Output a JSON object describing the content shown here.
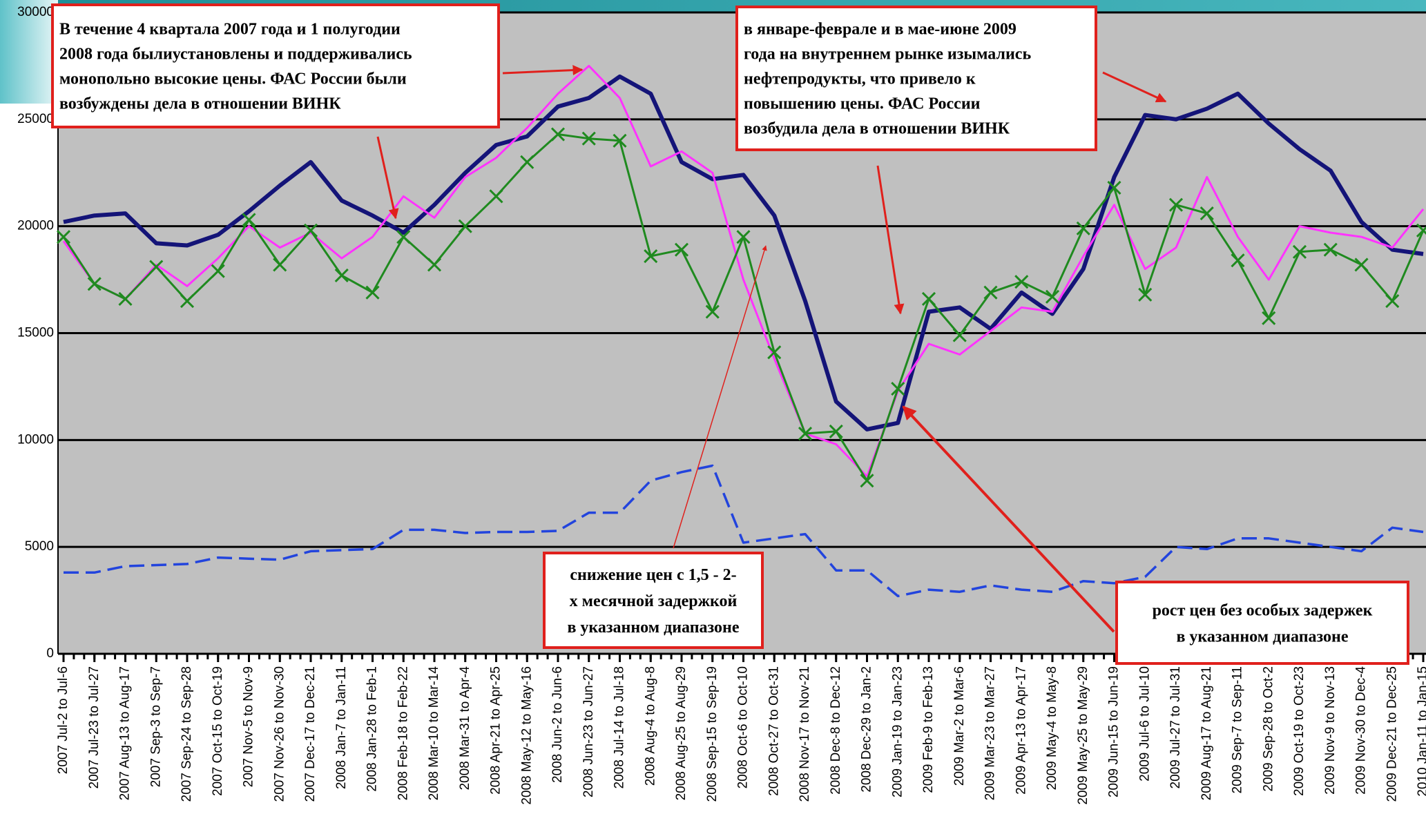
{
  "chart_data": {
    "type": "line",
    "categories": [
      "2007 Jul-2 to Jul-6",
      "2007 Jul-23 to Jul-27",
      "2007 Aug-13 to Aug-17",
      "2007 Sep-3 to Sep-7",
      "2007 Sep-24 to Sep-28",
      "2007 Oct-15 to Oct-19",
      "2007 Nov-5 to Nov-9",
      "2007 Nov-26 to Nov-30",
      "2007 Dec-17 to Dec-21",
      "2008 Jan-7 to Jan-11",
      "2008 Jan-28 to Feb-1",
      "2008 Feb-18 to Feb-22",
      "2008 Mar-10 to Mar-14",
      "2008 Mar-31 to Apr-4",
      "2008 Apr-21 to Apr-25",
      "2008 May-12 to May-16",
      "2008 Jun-2 to Jun-6",
      "2008 Jun-23 to Jun-27",
      "2008 Jul-14 to Jul-18",
      "2008 Aug-4 to Aug-8",
      "2008 Aug-25 to Aug-29",
      "2008 Sep-15 to Sep-19",
      "2008 Oct-6 to Oct-10",
      "2008 Oct-27 to Oct-31",
      "2008 Nov-17 to Nov-21",
      "2008 Dec-8 to Dec-12",
      "2008 Dec-29 to Jan-2",
      "2009 Jan-19 to Jan-23",
      "2009 Feb-9 to Feb-13",
      "2009 Mar-2 to Mar-6",
      "2009 Mar-23 to Mar-27",
      "2009 Apr-13 to Apr-17",
      "2009 May-4 to May-8",
      "2009 May-25 to May-29",
      "2009 Jun-15 to Jun-19",
      "2009 Jul-6 to Jul-10",
      "2009 Jul-27 to Jul-31",
      "2009 Aug-17 to Aug-21",
      "2009 Sep-7 to Sep-11",
      "2009 Sep-28 to Oct-2",
      "2009 Oct-19 to Oct-23",
      "2009 Nov-9 to Nov-13",
      "2009 Nov-30 to Dec-4",
      "2009 Dec-21 to Dec-25",
      "2010 Jan-11 to Jan-15"
    ],
    "series": [
      {
        "color": "#141478",
        "values": [
          20200,
          20500,
          20600,
          19200,
          19100,
          19600,
          20700,
          21900,
          23000,
          21200,
          20500,
          19700,
          21000,
          22500,
          23800,
          24200,
          25600,
          26000,
          27000,
          26200,
          23000,
          22200,
          22400,
          20500,
          16500,
          11800,
          10500,
          10800,
          16000,
          16200,
          15200,
          16900,
          15900,
          18000,
          22300,
          25200,
          25000,
          25500,
          26200,
          24800,
          23600,
          22600,
          20200,
          18900,
          18700
        ]
      },
      {
        "color": "#ff33ff",
        "values": [
          19300,
          17300,
          16600,
          18200,
          17200,
          18500,
          20000,
          19000,
          19700,
          18500,
          19500,
          21400,
          20400,
          22300,
          23200,
          24600,
          26200,
          27500,
          26000,
          22800,
          23500,
          22500,
          17500,
          13800,
          10300,
          9800,
          8300,
          12300,
          14500,
          14000,
          15100,
          16200,
          16000,
          18600,
          21000,
          18000,
          19000,
          22300,
          19500,
          17500,
          20000,
          19700,
          19500,
          19000,
          20800
        ]
      },
      {
        "color": "#1f8a1f",
        "marker": "x",
        "values": [
          19500,
          17300,
          16600,
          18100,
          16500,
          17900,
          20300,
          18200,
          19800,
          17700,
          16900,
          19500,
          18200,
          20000,
          21400,
          23000,
          24300,
          24100,
          24000,
          18600,
          18900,
          16000,
          19500,
          14100,
          10300,
          10400,
          8100,
          12400,
          16600,
          14900,
          16900,
          17400,
          16700,
          19900,
          21800,
          16800,
          21000,
          20600,
          18400,
          15700,
          18800,
          18900,
          18200,
          16500,
          19800
        ]
      },
      {
        "color": "#2244dd",
        "dashed": true,
        "values": [
          3800,
          3800,
          4100,
          4150,
          4200,
          4500,
          4450,
          4400,
          4800,
          4850,
          4900,
          5800,
          5800,
          5650,
          5700,
          5700,
          5750,
          6600,
          6600,
          8100,
          8500,
          8800,
          5200,
          5400,
          5600,
          3900,
          3900,
          2700,
          3000,
          2900,
          3200,
          3000,
          2900,
          3400,
          3300,
          3600,
          5000,
          4900,
          5400,
          5400,
          5200,
          5000,
          4800,
          5900,
          5700
        ]
      }
    ],
    "ylim": [
      0,
      30000
    ],
    "yticks": [
      0,
      5000,
      10000,
      15000,
      20000,
      25000,
      30000
    ],
    "grid": true,
    "annotations": [
      {
        "lines": [
          "В течение 4 квартала 2007 года и 1 полугодии",
          "2008 года былиустановлены и поддерживались",
          "монопольно высокие цены. ФАС России были",
          "возбуждены дела в отношении ВИНК"
        ]
      },
      {
        "lines": [
          "в январе-феврале и в мае-июне 2009",
          "года на внутреннем рынке изымались",
          "нефтепродукты, что привело к",
          "повышению цены. ФАС России",
          "возбудила дела в отношении ВИНК"
        ]
      },
      {
        "lines": [
          "снижение цен с 1,5 - 2-",
          "х месячной задержкой",
          "в указанном диапазоне"
        ]
      },
      {
        "lines": [
          "рост цен без особых задержек",
          "в указанном диапазоне"
        ]
      }
    ]
  }
}
